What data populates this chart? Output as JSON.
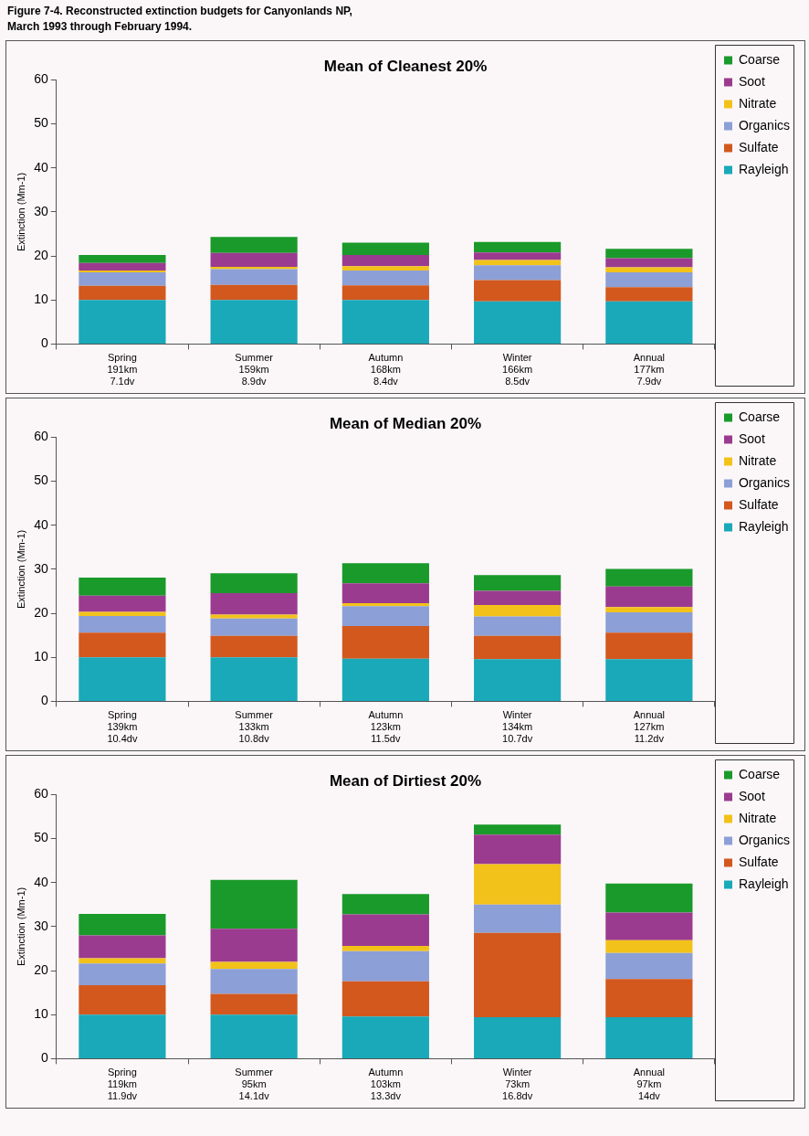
{
  "chart_data": [
    {
      "type": "bar",
      "title": "Mean of Cleanest 20%",
      "annotations": [
        "Figure 7-4.  Reconstructed extinction budgets for Canyonlands NP,\nMarch 1993 through February 1994."
      ],
      "ylabel": "Extinction (Mm-1)",
      "categories": [
        "Spring\n191km\n7.1dv",
        "Summer\n159km\n8.9dv",
        "Autumn\n168km\n8.4dv",
        "Winter\n166km\n8.5dv",
        "Annual\n177km\n7.9dv"
      ],
      "stacked": true,
      "ylim": [
        0,
        60
      ],
      "yticks": [
        0,
        10,
        20,
        30,
        40,
        50,
        60
      ],
      "grid": false,
      "legend": "right",
      "series": [
        {
          "name": "Rayleigh",
          "color": "#1aa9b8",
          "values": [
            10,
            10,
            10,
            9.7,
            9.7
          ]
        },
        {
          "name": "Sulfate",
          "color": "#d2581e",
          "values": [
            3.2,
            3.4,
            3.3,
            4.8,
            3.2
          ]
        },
        {
          "name": "Organics",
          "color": "#8c9fd6",
          "values": [
            3.1,
            3.6,
            3.4,
            3.4,
            3.4
          ]
        },
        {
          "name": "Nitrate",
          "color": "#f2c21a",
          "values": [
            0.4,
            0.5,
            1.0,
            1.2,
            1.1
          ]
        },
        {
          "name": "Soot",
          "color": "#9b3b8f",
          "values": [
            1.7,
            3.2,
            2.5,
            1.7,
            2.1
          ]
        },
        {
          "name": "Coarse",
          "color": "#1a9a2a",
          "values": [
            1.8,
            3.6,
            2.8,
            2.4,
            2.1
          ]
        }
      ]
    },
    {
      "type": "bar",
      "title": "Mean of Median 20%",
      "ylabel": "Extinction (Mm-1)",
      "categories": [
        "Spring\n139km\n10.4dv",
        "Summer\n133km\n10.8dv",
        "Autumn\n123km\n11.5dv",
        "Winter\n134km\n10.7dv",
        "Annual\n127km\n11.2dv"
      ],
      "stacked": true,
      "ylim": [
        0,
        60
      ],
      "yticks": [
        0,
        10,
        20,
        30,
        40,
        50,
        60
      ],
      "grid": false,
      "legend": "right",
      "series": [
        {
          "name": "Rayleigh",
          "color": "#1aa9b8",
          "values": [
            10,
            10,
            9.7,
            9.6,
            9.6
          ]
        },
        {
          "name": "Sulfate",
          "color": "#d2581e",
          "values": [
            5.6,
            4.9,
            7.4,
            5.3,
            6.0
          ]
        },
        {
          "name": "Organics",
          "color": "#8c9fd6",
          "values": [
            3.8,
            3.9,
            4.5,
            4.4,
            4.6
          ]
        },
        {
          "name": "Nitrate",
          "color": "#f2c21a",
          "values": [
            0.9,
            0.9,
            0.7,
            2.6,
            1.2
          ]
        },
        {
          "name": "Soot",
          "color": "#9b3b8f",
          "values": [
            3.7,
            4.9,
            4.5,
            3.2,
            4.7
          ]
        },
        {
          "name": "Coarse",
          "color": "#1a9a2a",
          "values": [
            4.1,
            4.5,
            4.6,
            3.6,
            4.0
          ]
        }
      ]
    },
    {
      "type": "bar",
      "title": "Mean of Dirtiest 20%",
      "ylabel": "Extinction (Mm-1)",
      "categories": [
        "Spring\n119km\n11.9dv",
        "Summer\n95km\n14.1dv",
        "Autumn\n103km\n13.3dv",
        "Winter\n73km\n16.8dv",
        "Annual\n97km\n14dv"
      ],
      "stacked": true,
      "ylim": [
        0,
        60
      ],
      "yticks": [
        0,
        10,
        20,
        30,
        40,
        50,
        60
      ],
      "grid": false,
      "legend": "right",
      "series": [
        {
          "name": "Rayleigh",
          "color": "#1aa9b8",
          "values": [
            10,
            10,
            9.6,
            9.4,
            9.4
          ]
        },
        {
          "name": "Sulfate",
          "color": "#d2581e",
          "values": [
            6.7,
            4.7,
            8.0,
            19.2,
            8.7
          ]
        },
        {
          "name": "Organics",
          "color": "#8c9fd6",
          "values": [
            4.9,
            5.7,
            6.8,
            6.4,
            5.9
          ]
        },
        {
          "name": "Nitrate",
          "color": "#f2c21a",
          "values": [
            1.2,
            1.6,
            1.2,
            9.2,
            2.9
          ]
        },
        {
          "name": "Soot",
          "color": "#9b3b8f",
          "values": [
            5.2,
            7.5,
            7.2,
            6.7,
            6.3
          ]
        },
        {
          "name": "Coarse",
          "color": "#1a9a2a",
          "values": [
            4.9,
            11.1,
            4.6,
            2.3,
            6.6
          ]
        }
      ]
    }
  ]
}
